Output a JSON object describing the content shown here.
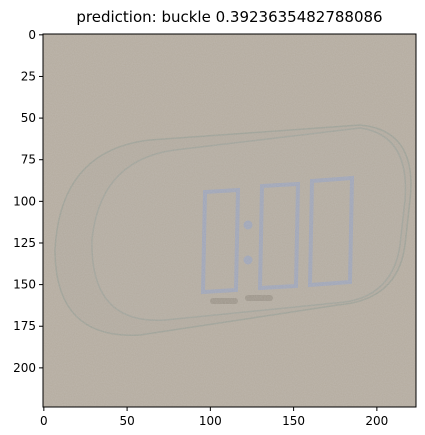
{
  "title": "prediction: buckle 0.3923635482788086",
  "image": {
    "description_colors": {
      "background": "#b4ab9e",
      "clock_body": "#aea69a",
      "clock_face": "#b2aa9f",
      "digits": "#9aa3bd",
      "outline": "#8e9a90"
    },
    "display_digits": "0:00"
  },
  "axes": {
    "x_ticks": [
      0,
      50,
      100,
      150,
      200
    ],
    "y_ticks": [
      0,
      25,
      50,
      75,
      100,
      125,
      150,
      175,
      200
    ],
    "xlim": [
      -0.5,
      223.5
    ],
    "ylim": [
      223.5,
      -0.5
    ]
  }
}
